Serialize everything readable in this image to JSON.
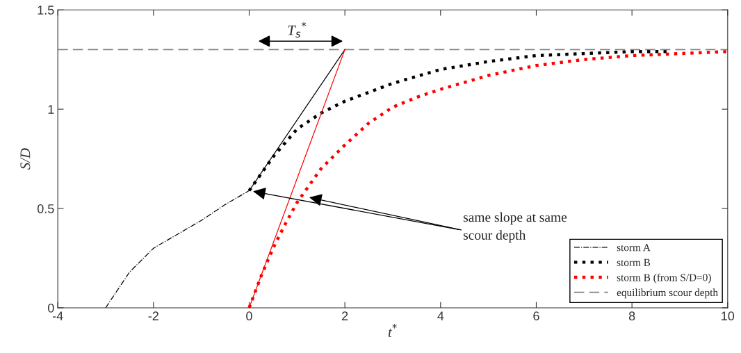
{
  "chart_data": {
    "type": "line",
    "xlabel": "t$^{*}$",
    "ylabel": "S/D",
    "xlim": [
      -4,
      10
    ],
    "ylim": [
      0,
      1.5
    ],
    "xticks": [
      -4,
      -2,
      0,
      2,
      4,
      6,
      8,
      10
    ],
    "yticks": [
      0,
      0.5,
      1,
      1.5
    ],
    "grid": false,
    "legend": "bottom right",
    "series": [
      {
        "name": "storm A",
        "color": "#000000",
        "line_style": "dashdot",
        "x": [
          -3,
          -2.5,
          -2,
          -1.5,
          -1,
          -0.5,
          0
        ],
        "values": [
          0,
          0.18,
          0.3,
          0.37,
          0.44,
          0.52,
          0.59
        ]
      },
      {
        "name": "storm B",
        "color": "#000000",
        "line_style": "dotted",
        "x": [
          0,
          0.5,
          1,
          1.5,
          2,
          3,
          4,
          5,
          6,
          7,
          8,
          8.8
        ],
        "values": [
          0.59,
          0.76,
          0.9,
          0.98,
          1.04,
          1.13,
          1.2,
          1.24,
          1.27,
          1.28,
          1.29,
          1.29
        ]
      },
      {
        "name": "storm B (from S/D=0)",
        "color": "#ff0000",
        "line_style": "dotted",
        "x": [
          0,
          0.25,
          0.5,
          0.75,
          1,
          1.5,
          2,
          2.5,
          3,
          3.5,
          4,
          5,
          6,
          7,
          8,
          9,
          10
        ],
        "values": [
          0,
          0.16,
          0.3,
          0.42,
          0.53,
          0.7,
          0.82,
          0.93,
          1.01,
          1.06,
          1.1,
          1.17,
          1.22,
          1.25,
          1.27,
          1.28,
          1.29
        ]
      },
      {
        "name": "equilibrium scour depth",
        "color": "#808080",
        "line_style": "dashed",
        "x": [
          -4,
          10
        ],
        "values": [
          1.3,
          1.3
        ]
      },
      {
        "color": "#000000",
        "line_style": "solid",
        "x": [
          0,
          2
        ],
        "values": [
          0.59,
          1.3
        ]
      },
      {
        "color": "#ff0000",
        "line_style": "solid",
        "x": [
          0,
          2
        ],
        "values": [
          0,
          1.3
        ]
      }
    ],
    "annotations": [
      "T$_{s}$$^{*}$",
      {
        "text": "same slope at same\nscour depth",
        "x": 0,
        "y": 0.59
      }
    ]
  }
}
